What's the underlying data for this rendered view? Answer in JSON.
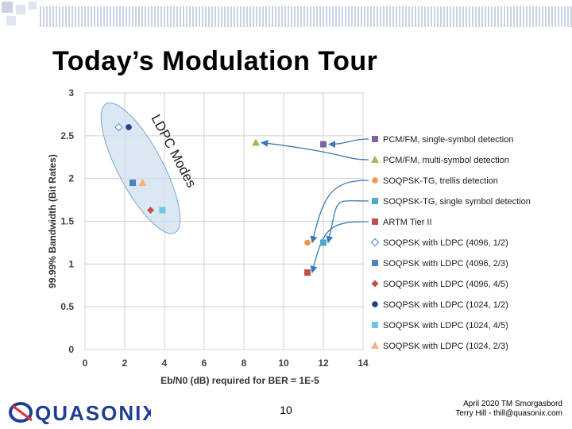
{
  "slide": {
    "title": "Today’s Modulation Tour",
    "page_number": "10",
    "footer_line1": "April 2020 TM Smorgasbord",
    "footer_line2": "Terry Hill - thill@quasonix.com",
    "logo_text": "QUASONIX"
  },
  "colors": {
    "accent_blue": "#1f3f94",
    "ellipse_fill": "#cfe0f0",
    "arrow_blue": "#3a7ab8",
    "grid": "#d0d0d0"
  },
  "chart_data": {
    "type": "scatter",
    "xlabel": "Eb/N0 (dB) required for BER = 1E-5",
    "ylabel": "99.99% Bandwidth (Bit Rates)",
    "xlim": [
      0,
      14
    ],
    "ylim": [
      0,
      3
    ],
    "xticks": [
      "0",
      "2",
      "4",
      "6",
      "8",
      "10",
      "12",
      "14"
    ],
    "yticks": [
      "0",
      "0.5",
      "1",
      "1.5",
      "2",
      "2.5",
      "3"
    ],
    "annotation": "LDPC Modes",
    "series": [
      {
        "name": "PCM/FM, single-symbol detection",
        "marker": "square",
        "color": "#8064a2",
        "x": 12,
        "y": 2.4
      },
      {
        "name": "PCM/FM, multi-symbol detection",
        "marker": "triangle",
        "color": "#9bbb59",
        "x": 8.6,
        "y": 2.42
      },
      {
        "name": "SOQPSK-TG, trellis detection",
        "marker": "circle",
        "color": "#f79646",
        "x": 11.2,
        "y": 1.25
      },
      {
        "name": "SOQPSK-TG, single symbol detection",
        "marker": "square",
        "color": "#4bacc6",
        "x": 12,
        "y": 1.25
      },
      {
        "name": "ARTM Tier II",
        "marker": "square",
        "color": "#c0504d",
        "x": 11.2,
        "y": 0.9
      },
      {
        "name": "SOQPSK with LDPC (4096, 1/2)",
        "marker": "diamond-open",
        "color": "#4f81bd",
        "x": 1.7,
        "y": 2.6
      },
      {
        "name": "SOQPSK with LDPC (4096, 2/3)",
        "marker": "square",
        "color": "#4f81bd",
        "x": 2.4,
        "y": 1.95
      },
      {
        "name": "SOQPSK with LDPC (4096, 4/5)",
        "marker": "diamond",
        "color": "#c0504d",
        "x": 3.3,
        "y": 1.63
      },
      {
        "name": "SOQPSK with LDPC (1024, 1/2)",
        "marker": "circle",
        "color": "#1f3f94",
        "x": 2.2,
        "y": 2.6
      },
      {
        "name": "SOQPSK with LDPC (1024, 4/5)",
        "marker": "square",
        "color": "#6cc6e8",
        "x": 3.9,
        "y": 1.63
      },
      {
        "name": "SOQPSK with LDPC (1024, 2/3)",
        "marker": "triangle",
        "color": "#f5b183",
        "x": 2.9,
        "y": 1.95
      }
    ]
  }
}
